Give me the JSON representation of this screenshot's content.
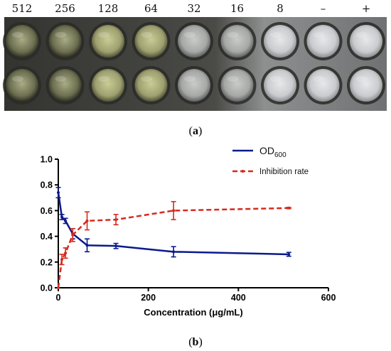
{
  "panel_a": {
    "label": "a",
    "concentration_labels": [
      "512",
      "256",
      "128",
      "64",
      "32",
      "16",
      "8",
      "–",
      "+"
    ],
    "well_rows": 2,
    "colors": {
      "plate_dark": "#3a3a36",
      "plate_light": "#8d8f90",
      "well_yellow": "#b9bd85",
      "well_gray": "#d4d6d4"
    }
  },
  "panel_b": {
    "label": "b"
  },
  "chart_data": {
    "type": "line",
    "xlabel": "Concentration (μg/mL)",
    "ylabel": "",
    "xlim": [
      0,
      600
    ],
    "ylim": [
      0,
      1.0
    ],
    "x_ticks": [
      "0",
      "200",
      "400",
      "600"
    ],
    "y_ticks": [
      "0.0",
      "0.2",
      "0.4",
      "0.6",
      "0.8",
      "1.0"
    ],
    "grid": false,
    "legend_position": "top-right",
    "series": [
      {
        "name": "OD",
        "name_subscript": "600",
        "color": "#0b1a8c",
        "line_style": "solid",
        "points": [
          {
            "x": 0,
            "y": 0.74,
            "err": 0.04
          },
          {
            "x": 8,
            "y": 0.55,
            "err": 0.02
          },
          {
            "x": 16,
            "y": 0.52,
            "err": 0.02
          },
          {
            "x": 32,
            "y": 0.42,
            "err": 0.04
          },
          {
            "x": 64,
            "y": 0.33,
            "err": 0.05
          },
          {
            "x": 128,
            "y": 0.325,
            "err": 0.02
          },
          {
            "x": 256,
            "y": 0.28,
            "err": 0.04
          },
          {
            "x": 512,
            "y": 0.26,
            "err": 0.015
          }
        ]
      },
      {
        "name": "Inhibition rate",
        "color": "#d62a1e",
        "line_style": "dashed",
        "points": [
          {
            "x": 0,
            "y": 0.0,
            "err": 0.0
          },
          {
            "x": 8,
            "y": 0.22,
            "err": 0.04
          },
          {
            "x": 16,
            "y": 0.27,
            "err": 0.04
          },
          {
            "x": 32,
            "y": 0.41,
            "err": 0.05
          },
          {
            "x": 64,
            "y": 0.52,
            "err": 0.07
          },
          {
            "x": 128,
            "y": 0.53,
            "err": 0.04
          },
          {
            "x": 256,
            "y": 0.6,
            "err": 0.07
          },
          {
            "x": 512,
            "y": 0.62,
            "err": 0.005
          }
        ]
      }
    ]
  }
}
